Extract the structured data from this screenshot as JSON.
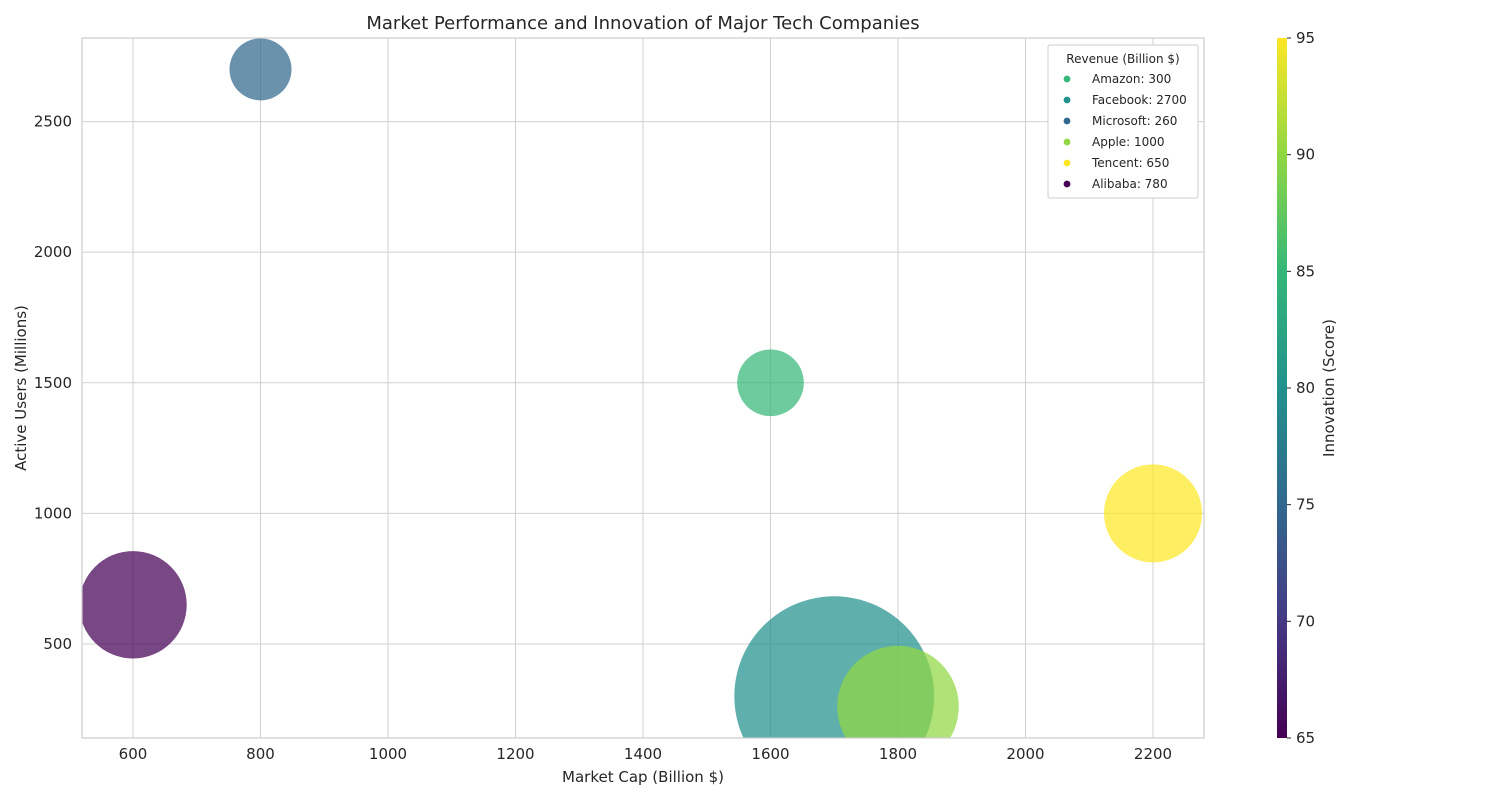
{
  "chart_data": {
    "type": "scatter",
    "title": "Market Performance and Innovation of Major Tech Companies",
    "xlabel": "Market Cap (Billion $)",
    "ylabel": "Active Users (Millions)",
    "xlim": [
      520,
      2280
    ],
    "ylim": [
      140,
      2820
    ],
    "xticks": [
      600,
      800,
      1000,
      1200,
      1400,
      1600,
      1800,
      2000,
      2200
    ],
    "yticks": [
      500,
      1000,
      1500,
      2000,
      2500
    ],
    "grid": true,
    "legend": {
      "title": "Revenue (Billion $)",
      "placement": "top-right",
      "entries": [
        "Amazon: 300",
        "Facebook: 2700",
        "Microsoft: 260",
        "Apple: 1000",
        "Tencent: 650",
        "Alibaba: 780"
      ]
    },
    "colorbar": {
      "label": "Innovation (Score)",
      "range": [
        65,
        95
      ],
      "ticks": [
        65,
        70,
        75,
        80,
        85,
        90,
        95
      ],
      "colormap": "viridis"
    },
    "points": [
      {
        "name": "Amazon",
        "market_cap": 1600,
        "active_users": 1500,
        "revenue": 300,
        "innovation": 85
      },
      {
        "name": "Facebook",
        "market_cap": 1700,
        "active_users": 300,
        "revenue": 2700,
        "innovation": 80
      },
      {
        "name": "Microsoft",
        "market_cap": 800,
        "active_users": 2700,
        "revenue": 260,
        "innovation": 75
      },
      {
        "name": "Apple",
        "market_cap": 1800,
        "active_users": 260,
        "revenue": 1000,
        "innovation": 90
      },
      {
        "name": "Tencent",
        "market_cap": 2200,
        "active_users": 1000,
        "revenue": 650,
        "innovation": 95
      },
      {
        "name": "Alibaba",
        "market_cap": 600,
        "active_users": 650,
        "revenue": 780,
        "innovation": 65
      }
    ]
  }
}
